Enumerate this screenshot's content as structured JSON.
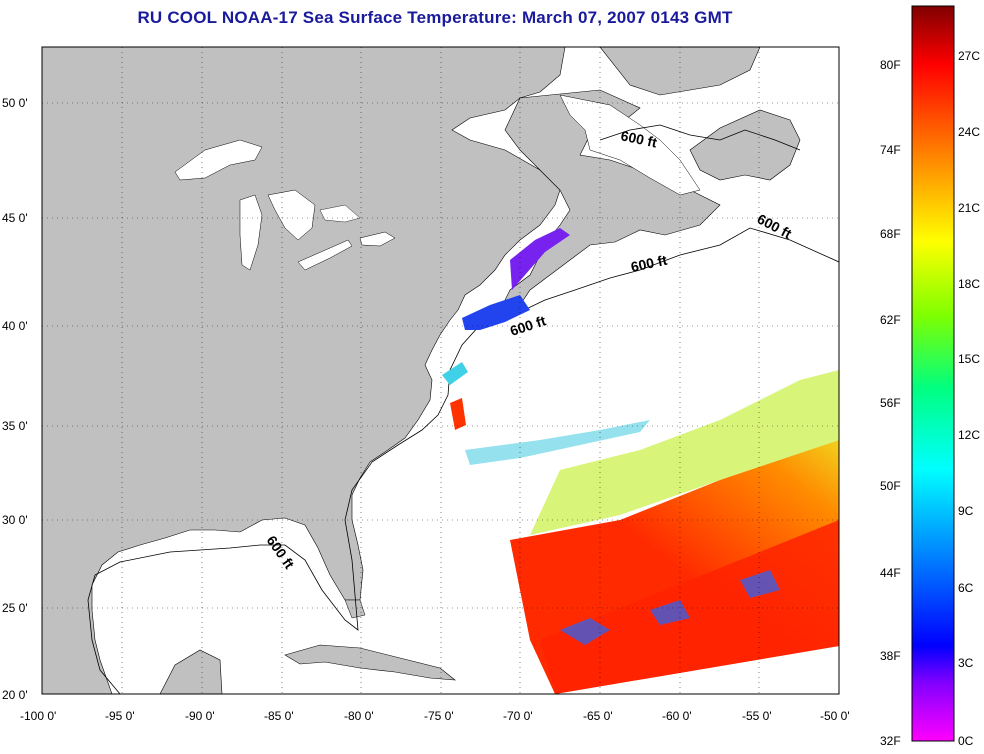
{
  "title": "RU COOL  NOAA-17  Sea Surface Temperature:  March 07, 2007 0143 GMT",
  "map": {
    "lon_range": [
      -100,
      -50
    ],
    "lat_range": [
      20,
      52.5
    ],
    "grid": "dotted",
    "land_color": "#c0c0c0",
    "no_data_color": "#ffffff",
    "lon_ticks": [
      "-100 0'",
      "-95 0'",
      "-90 0'",
      "-85 0'",
      "-80 0'",
      "-75 0'",
      "-70 0'",
      "-65 0'",
      "-60 0'",
      "-55 0'",
      "-50 0'"
    ],
    "lat_ticks": [
      "20 0'",
      "25 0'",
      "30 0'",
      "35 0'",
      "40 0'",
      "45 0'",
      "50 0'"
    ],
    "contour_labels": [
      "600 ft",
      "600 ft",
      "600 ft",
      "600 ft",
      "600 ft"
    ]
  },
  "colorbar": {
    "f_labels": [
      "32F",
      "38F",
      "44F",
      "50F",
      "56F",
      "62F",
      "68F",
      "74F",
      "80F"
    ],
    "c_labels": [
      "0C",
      "3C",
      "6C",
      "9C",
      "12C",
      "15C",
      "18C",
      "21C",
      "24C",
      "27C"
    ],
    "colors": [
      "#ff00ff",
      "#8000ff",
      "#0000ff",
      "#0080ff",
      "#00ffff",
      "#00ff80",
      "#80ff00",
      "#ffff00",
      "#ff8000",
      "#ff0000",
      "#800000"
    ]
  }
}
